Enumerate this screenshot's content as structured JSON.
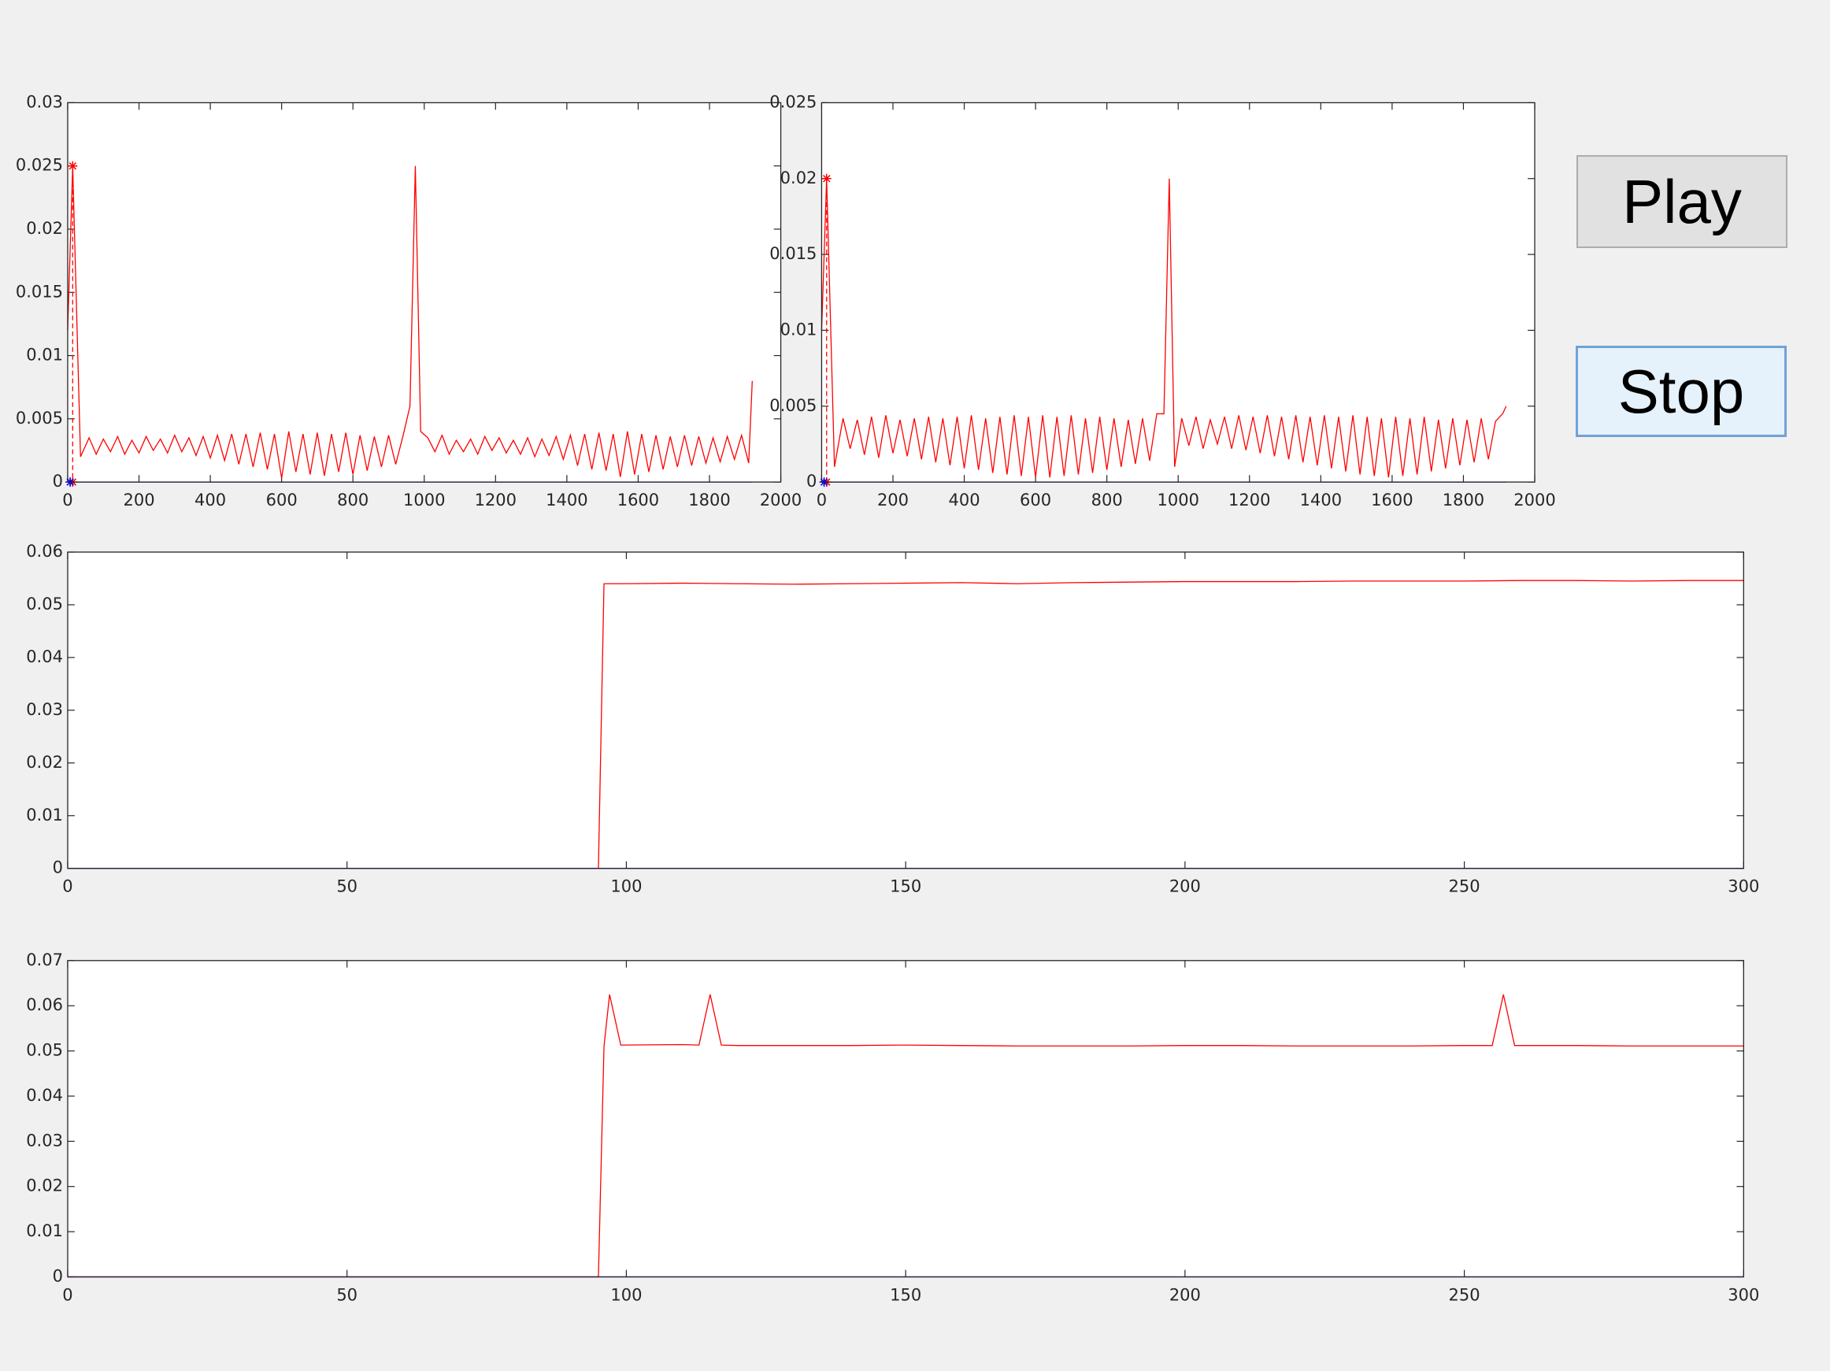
{
  "chart_data": [
    {
      "type": "line",
      "xlim": [
        0,
        2000
      ],
      "xticks": [
        0,
        200,
        400,
        600,
        800,
        1000,
        1200,
        1400,
        1600,
        1800,
        2000
      ],
      "ylim": [
        0,
        0.03
      ],
      "yticks": [
        0,
        0.005,
        0.01,
        0.015,
        0.02,
        0.025,
        0.03
      ],
      "series": [
        {
          "color": "#ff0000",
          "x": [
            0,
            14,
            36,
            60,
            80,
            100,
            120,
            140,
            160,
            180,
            200,
            220,
            240,
            260,
            280,
            300,
            320,
            340,
            360,
            380,
            400,
            420,
            440,
            460,
            480,
            500,
            520,
            540,
            560,
            580,
            600,
            620,
            640,
            660,
            680,
            700,
            720,
            740,
            760,
            780,
            800,
            820,
            840,
            860,
            880,
            900,
            920,
            940,
            960,
            975,
            990,
            1010,
            1030,
            1050,
            1070,
            1090,
            1110,
            1130,
            1150,
            1170,
            1190,
            1210,
            1230,
            1250,
            1270,
            1290,
            1310,
            1330,
            1350,
            1370,
            1390,
            1410,
            1430,
            1450,
            1470,
            1490,
            1510,
            1530,
            1550,
            1570,
            1590,
            1610,
            1630,
            1650,
            1670,
            1690,
            1710,
            1730,
            1750,
            1770,
            1790,
            1810,
            1830,
            1850,
            1870,
            1890,
            1910,
            1920
          ],
          "values": [
            0.012,
            0.025,
            0.002,
            0.0035,
            0.0022,
            0.0034,
            0.0024,
            0.0036,
            0.0022,
            0.0033,
            0.0023,
            0.0036,
            0.0025,
            0.0034,
            0.0023,
            0.0037,
            0.0024,
            0.0035,
            0.0021,
            0.0036,
            0.0019,
            0.0037,
            0.0017,
            0.0038,
            0.0014,
            0.0038,
            0.0012,
            0.0039,
            0.001,
            0.0038,
            0.0003,
            0.004,
            0.0008,
            0.0038,
            0.0006,
            0.0039,
            0.0005,
            0.0038,
            0.0008,
            0.0039,
            0.0006,
            0.0037,
            0.0009,
            0.0036,
            0.0012,
            0.0037,
            0.0014,
            0.0036,
            0.006,
            0.025,
            0.004,
            0.0035,
            0.0024,
            0.0037,
            0.0022,
            0.0033,
            0.0024,
            0.0034,
            0.0022,
            0.0036,
            0.0025,
            0.0035,
            0.0023,
            0.0033,
            0.0022,
            0.0035,
            0.002,
            0.0034,
            0.0021,
            0.0036,
            0.0018,
            0.0037,
            0.0013,
            0.0038,
            0.001,
            0.0039,
            0.0009,
            0.0038,
            0.0004,
            0.004,
            0.0006,
            0.0038,
            0.0008,
            0.0037,
            0.001,
            0.0036,
            0.0012,
            0.0037,
            0.0013,
            0.0036,
            0.0015,
            0.0035,
            0.0016,
            0.0036,
            0.0018,
            0.0037,
            0.0015,
            0.008
          ]
        },
        {
          "color": "#0000ff",
          "x": [
            0,
            1920
          ],
          "values": [
            0,
            0
          ]
        },
        {
          "color": "#ff0000",
          "linestyle": "dashed",
          "marker": "star",
          "x": [
            14,
            14
          ],
          "values": [
            0.025,
            0
          ]
        },
        {
          "color": "#0000ff",
          "marker": "star",
          "x": [
            7
          ],
          "values": [
            0
          ]
        }
      ]
    },
    {
      "type": "line",
      "xlim": [
        0,
        2000
      ],
      "xticks": [
        0,
        200,
        400,
        600,
        800,
        1000,
        1200,
        1400,
        1600,
        1800,
        2000
      ],
      "ylim": [
        0,
        0.025
      ],
      "yticks": [
        0,
        0.005,
        0.01,
        0.015,
        0.02,
        0.025
      ],
      "series": [
        {
          "color": "#ff0000",
          "x": [
            0,
            14,
            36,
            60,
            80,
            100,
            120,
            140,
            160,
            180,
            200,
            220,
            240,
            260,
            280,
            300,
            320,
            340,
            360,
            380,
            400,
            420,
            440,
            460,
            480,
            500,
            520,
            540,
            560,
            580,
            600,
            620,
            640,
            660,
            680,
            700,
            720,
            740,
            760,
            780,
            800,
            820,
            840,
            860,
            880,
            900,
            920,
            940,
            960,
            975,
            990,
            1010,
            1030,
            1050,
            1070,
            1090,
            1110,
            1130,
            1150,
            1170,
            1190,
            1210,
            1230,
            1250,
            1270,
            1290,
            1310,
            1330,
            1350,
            1370,
            1390,
            1410,
            1430,
            1450,
            1470,
            1490,
            1510,
            1530,
            1550,
            1570,
            1590,
            1610,
            1630,
            1650,
            1670,
            1690,
            1710,
            1730,
            1750,
            1770,
            1790,
            1810,
            1830,
            1850,
            1870,
            1890,
            1910,
            1920
          ],
          "values": [
            0.01,
            0.02,
            0.001,
            0.0042,
            0.0022,
            0.0041,
            0.0018,
            0.0043,
            0.0016,
            0.0044,
            0.0019,
            0.0041,
            0.0017,
            0.0042,
            0.0015,
            0.0043,
            0.0013,
            0.0042,
            0.0011,
            0.0043,
            0.0009,
            0.0044,
            0.0008,
            0.0042,
            0.0006,
            0.0043,
            0.0005,
            0.0044,
            0.0004,
            0.0043,
            0.0003,
            0.0044,
            0.0003,
            0.0043,
            0.0004,
            0.0044,
            0.0005,
            0.0042,
            0.0006,
            0.0043,
            0.0008,
            0.0042,
            0.001,
            0.0041,
            0.0012,
            0.0042,
            0.0014,
            0.0045,
            0.0045,
            0.02,
            0.001,
            0.0042,
            0.0024,
            0.0043,
            0.0022,
            0.0041,
            0.0025,
            0.0043,
            0.0022,
            0.0044,
            0.0021,
            0.0043,
            0.0019,
            0.0044,
            0.0017,
            0.0043,
            0.0015,
            0.0044,
            0.0013,
            0.0043,
            0.0011,
            0.0044,
            0.0009,
            0.0043,
            0.0007,
            0.0044,
            0.0005,
            0.0043,
            0.0004,
            0.0042,
            0.0003,
            0.0043,
            0.0004,
            0.0042,
            0.0005,
            0.0043,
            0.0007,
            0.0041,
            0.0009,
            0.0042,
            0.0011,
            0.0041,
            0.0013,
            0.0042,
            0.0015,
            0.004,
            0.0045,
            0.005
          ]
        },
        {
          "color": "#0000ff",
          "x": [
            0,
            1920
          ],
          "values": [
            0,
            0
          ]
        },
        {
          "color": "#ff0000",
          "linestyle": "dashed",
          "marker": "star",
          "x": [
            14,
            14
          ],
          "values": [
            0.02,
            0
          ]
        },
        {
          "color": "#0000ff",
          "marker": "star",
          "x": [
            7
          ],
          "values": [
            0
          ]
        }
      ]
    },
    {
      "type": "line",
      "xlim": [
        0,
        300
      ],
      "xticks": [
        0,
        50,
        100,
        150,
        200,
        250,
        300
      ],
      "ylim": [
        0,
        0.06
      ],
      "yticks": [
        0,
        0.01,
        0.02,
        0.03,
        0.04,
        0.05,
        0.06
      ],
      "series": [
        {
          "color": "#ff0000",
          "x": [
            0,
            95,
            96,
            100,
            110,
            120,
            130,
            140,
            150,
            160,
            170,
            180,
            190,
            200,
            210,
            220,
            230,
            240,
            250,
            260,
            270,
            280,
            290,
            300
          ],
          "values": [
            0,
            0,
            0.054,
            0.054,
            0.0541,
            0.054,
            0.0539,
            0.054,
            0.0541,
            0.0542,
            0.054,
            0.0542,
            0.0543,
            0.0544,
            0.0544,
            0.0544,
            0.0545,
            0.0545,
            0.0545,
            0.0546,
            0.0546,
            0.0545,
            0.0546,
            0.0546
          ]
        },
        {
          "color": "#0000ff",
          "x": [
            0,
            300
          ],
          "values": [
            0,
            0
          ]
        }
      ]
    },
    {
      "type": "line",
      "xlim": [
        0,
        300
      ],
      "xticks": [
        0,
        50,
        100,
        150,
        200,
        250,
        300
      ],
      "ylim": [
        0,
        0.07
      ],
      "yticks": [
        0,
        0.01,
        0.02,
        0.03,
        0.04,
        0.05,
        0.06,
        0.07
      ],
      "series": [
        {
          "color": "#ff0000",
          "x": [
            0,
            95,
            96,
            97,
            99,
            110,
            113,
            115,
            117,
            120,
            130,
            140,
            150,
            160,
            170,
            180,
            190,
            200,
            210,
            220,
            230,
            240,
            250,
            255,
            257,
            259,
            270,
            280,
            290,
            300
          ],
          "values": [
            0,
            0,
            0.051,
            0.0625,
            0.0513,
            0.0514,
            0.0513,
            0.0625,
            0.0513,
            0.0512,
            0.0512,
            0.0512,
            0.0513,
            0.0512,
            0.0511,
            0.0511,
            0.0511,
            0.0512,
            0.0512,
            0.0511,
            0.0511,
            0.0511,
            0.0512,
            0.0512,
            0.0625,
            0.0512,
            0.0512,
            0.0511,
            0.0511,
            0.0511
          ]
        },
        {
          "color": "#0000ff",
          "x": [
            0,
            300
          ],
          "values": [
            0,
            0
          ]
        }
      ]
    }
  ],
  "controls": {
    "play": "Play",
    "stop": "Stop"
  }
}
